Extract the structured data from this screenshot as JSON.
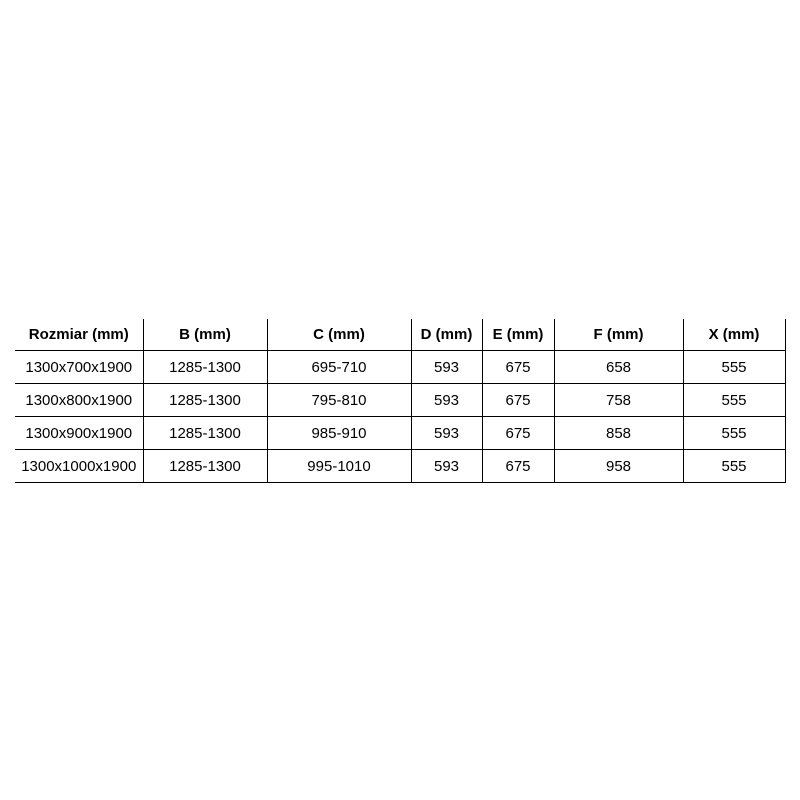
{
  "page": {
    "background_color": "#ffffff",
    "text_color": "#000000",
    "border_color": "#000000"
  },
  "table": {
    "headers": [
      "Rozmiar (mm)",
      "B (mm)",
      "C (mm)",
      "D (mm)",
      "E (mm)",
      "F (mm)",
      "X (mm)"
    ],
    "rows": [
      {
        "cells": [
          "1300x700x1900",
          "1285-1300",
          "695-710",
          "593",
          "675",
          "658",
          "555"
        ]
      },
      {
        "cells": [
          "1300x800x1900",
          "1285-1300",
          "795-810",
          "593",
          "675",
          "758",
          "555"
        ]
      },
      {
        "cells": [
          "1300x900x1900",
          "1285-1300",
          "985-910",
          "593",
          "675",
          "858",
          "555"
        ]
      },
      {
        "cells": [
          "1300x1000x1900",
          "1285-1300",
          "995-1010",
          "593",
          "675",
          "958",
          "555"
        ]
      }
    ]
  },
  "chart_data": {
    "type": "table",
    "title": "",
    "columns": [
      "Rozmiar (mm)",
      "B (mm)",
      "C (mm)",
      "D (mm)",
      "E (mm)",
      "F (mm)",
      "X (mm)"
    ],
    "rows": [
      [
        "1300x700x1900",
        "1285-1300",
        "695-710",
        "593",
        "675",
        "658",
        "555"
      ],
      [
        "1300x800x1900",
        "1285-1300",
        "795-810",
        "593",
        "675",
        "758",
        "555"
      ],
      [
        "1300x900x1900",
        "1285-1300",
        "985-910",
        "593",
        "675",
        "858",
        "555"
      ],
      [
        "1300x1000x1900",
        "1285-1300",
        "995-1010",
        "593",
        "675",
        "958",
        "555"
      ]
    ]
  }
}
